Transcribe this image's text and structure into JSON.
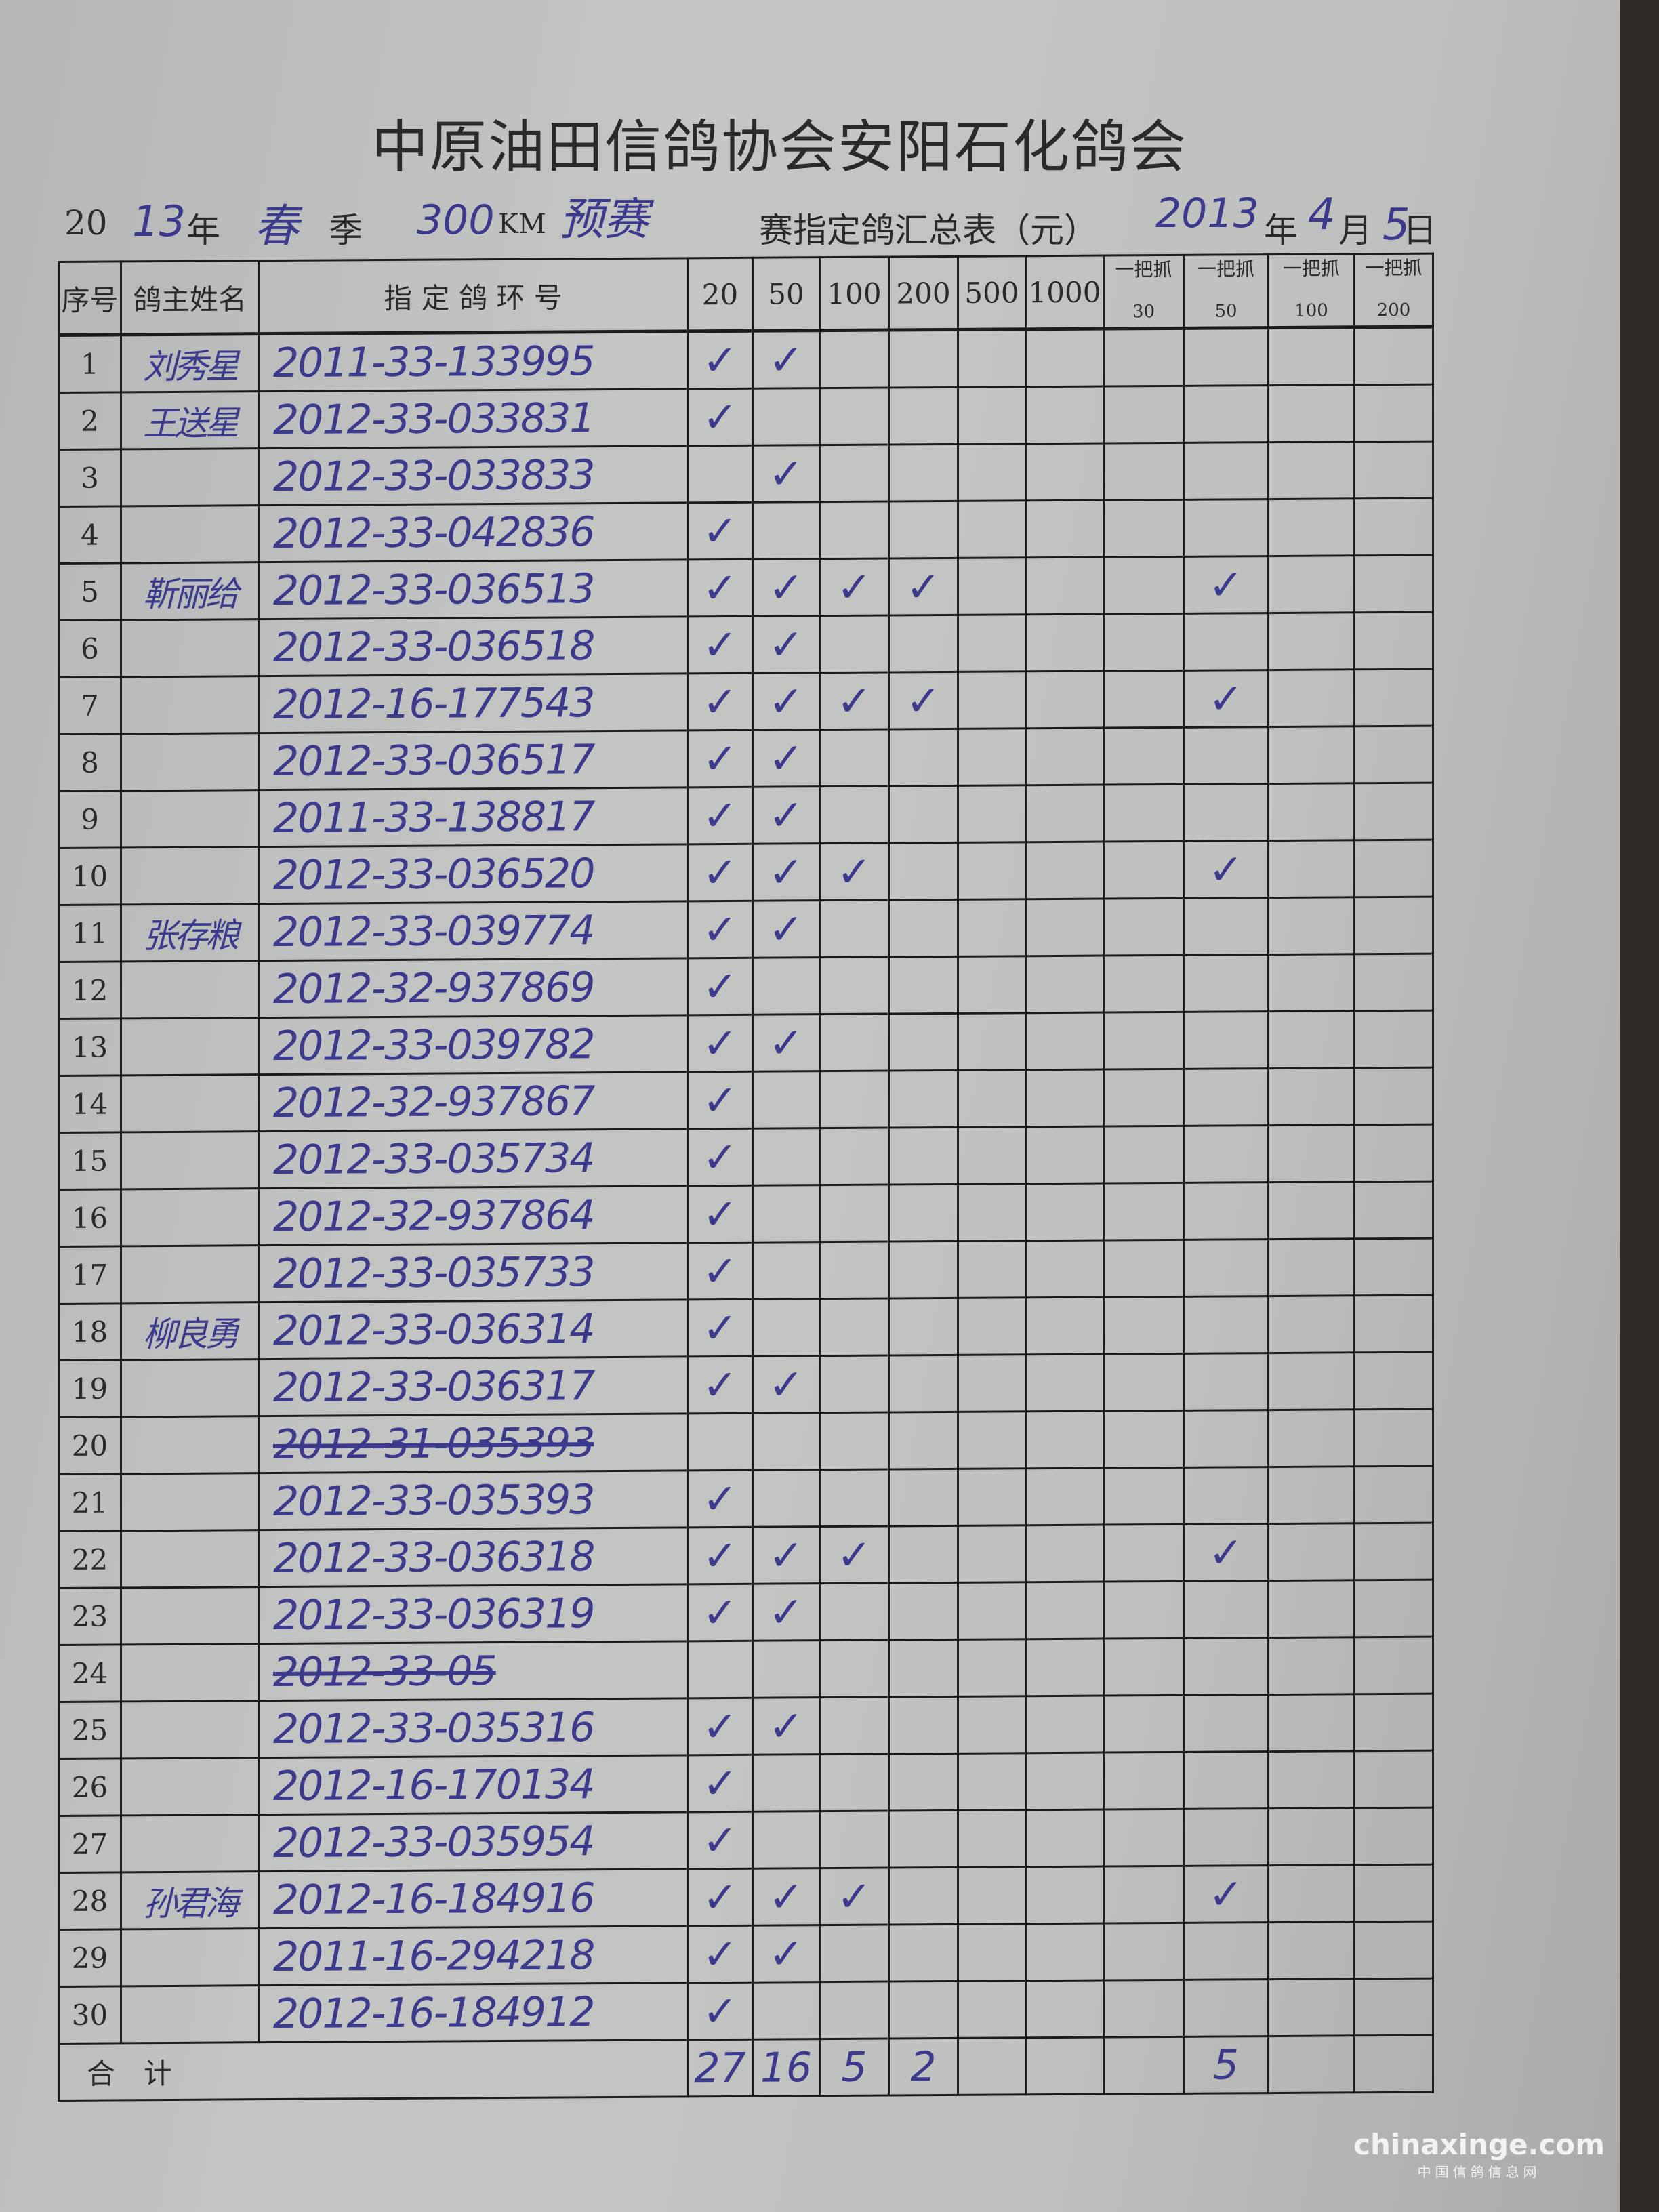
{
  "title": "中原油田信鸽协会安阳石化鸽会",
  "subtitle": {
    "prefix": "20",
    "year_hw": "13",
    "year_label": "年",
    "season_hw": "春",
    "season_label": "季",
    "distance_hw": "300",
    "distance_unit": "KM",
    "race_type_hw": "预赛",
    "form_name": "赛指定鸽汇总表（元）",
    "date_year_hw": "2013",
    "date_year_label": "年",
    "date_month_hw": "4",
    "date_month_label": "月",
    "date_day_hw": "5",
    "date_day_label": "日"
  },
  "table": {
    "headers": {
      "no": "序号",
      "owner": "鸽主姓名",
      "ring": "指 定 鸽 环 号",
      "stakes": [
        "20",
        "50",
        "100",
        "200",
        "500",
        "1000"
      ],
      "grab_label": "一把抓",
      "grab_stakes": [
        "30",
        "50",
        "100",
        "200"
      ]
    },
    "check_mark": "✓",
    "rows": [
      {
        "no": "1",
        "owner": "刘秀星",
        "ring": "2011-33-133995",
        "marks": [
          1,
          1,
          0,
          0,
          0,
          0,
          0,
          0,
          0,
          0
        ]
      },
      {
        "no": "2",
        "owner": "王送星",
        "ring": "2012-33-033831",
        "marks": [
          1,
          0,
          0,
          0,
          0,
          0,
          0,
          0,
          0,
          0
        ]
      },
      {
        "no": "3",
        "owner": "",
        "ring": "2012-33-033833",
        "marks": [
          0,
          1,
          0,
          0,
          0,
          0,
          0,
          0,
          0,
          0
        ]
      },
      {
        "no": "4",
        "owner": "",
        "ring": "2012-33-042836",
        "marks": [
          1,
          0,
          0,
          0,
          0,
          0,
          0,
          0,
          0,
          0
        ]
      },
      {
        "no": "5",
        "owner": "靳丽给",
        "ring": "2012-33-036513",
        "marks": [
          1,
          1,
          1,
          1,
          0,
          0,
          0,
          1,
          0,
          0
        ]
      },
      {
        "no": "6",
        "owner": "",
        "ring": "2012-33-036518",
        "marks": [
          1,
          1,
          0,
          0,
          0,
          0,
          0,
          0,
          0,
          0
        ]
      },
      {
        "no": "7",
        "owner": "",
        "ring": "2012-16-177543",
        "marks": [
          1,
          1,
          1,
          1,
          0,
          0,
          0,
          1,
          0,
          0
        ]
      },
      {
        "no": "8",
        "owner": "",
        "ring": "2012-33-036517",
        "marks": [
          1,
          1,
          0,
          0,
          0,
          0,
          0,
          0,
          0,
          0
        ]
      },
      {
        "no": "9",
        "owner": "",
        "ring": "2011-33-138817",
        "marks": [
          1,
          1,
          0,
          0,
          0,
          0,
          0,
          0,
          0,
          0
        ]
      },
      {
        "no": "10",
        "owner": "",
        "ring": "2012-33-036520",
        "marks": [
          1,
          1,
          1,
          0,
          0,
          0,
          0,
          1,
          0,
          0
        ]
      },
      {
        "no": "11",
        "owner": "张存粮",
        "ring": "2012-33-039774",
        "marks": [
          1,
          1,
          0,
          0,
          0,
          0,
          0,
          0,
          0,
          0
        ]
      },
      {
        "no": "12",
        "owner": "",
        "ring": "2012-32-937869",
        "marks": [
          1,
          0,
          0,
          0,
          0,
          0,
          0,
          0,
          0,
          0
        ]
      },
      {
        "no": "13",
        "owner": "",
        "ring": "2012-33-039782",
        "marks": [
          1,
          1,
          0,
          0,
          0,
          0,
          0,
          0,
          0,
          0
        ]
      },
      {
        "no": "14",
        "owner": "",
        "ring": "2012-32-937867",
        "marks": [
          1,
          0,
          0,
          0,
          0,
          0,
          0,
          0,
          0,
          0
        ]
      },
      {
        "no": "15",
        "owner": "",
        "ring": "2012-33-035734",
        "marks": [
          1,
          0,
          0,
          0,
          0,
          0,
          0,
          0,
          0,
          0
        ]
      },
      {
        "no": "16",
        "owner": "",
        "ring": "2012-32-937864",
        "marks": [
          1,
          0,
          0,
          0,
          0,
          0,
          0,
          0,
          0,
          0
        ]
      },
      {
        "no": "17",
        "owner": "",
        "ring": "2012-33-035733",
        "marks": [
          1,
          0,
          0,
          0,
          0,
          0,
          0,
          0,
          0,
          0
        ]
      },
      {
        "no": "18",
        "owner": "柳良勇",
        "ring": "2012-33-036314",
        "marks": [
          1,
          0,
          0,
          0,
          0,
          0,
          0,
          0,
          0,
          0
        ]
      },
      {
        "no": "19",
        "owner": "",
        "ring": "2012-33-036317",
        "marks": [
          1,
          1,
          0,
          0,
          0,
          0,
          0,
          0,
          0,
          0
        ]
      },
      {
        "no": "20",
        "owner": "",
        "ring": "2012-31-035393",
        "struck": true,
        "marks": [
          0,
          0,
          0,
          0,
          0,
          0,
          0,
          0,
          0,
          0
        ]
      },
      {
        "no": "21",
        "owner": "",
        "ring": "2012-33-035393",
        "marks": [
          1,
          0,
          0,
          0,
          0,
          0,
          0,
          0,
          0,
          0
        ]
      },
      {
        "no": "22",
        "owner": "",
        "ring": "2012-33-036318",
        "marks": [
          1,
          1,
          1,
          0,
          0,
          0,
          0,
          1,
          0,
          0
        ]
      },
      {
        "no": "23",
        "owner": "",
        "ring": "2012-33-036319",
        "marks": [
          1,
          1,
          0,
          0,
          0,
          0,
          0,
          0,
          0,
          0
        ]
      },
      {
        "no": "24",
        "owner": "",
        "ring": "2012-33-05",
        "struck": true,
        "marks": [
          0,
          0,
          0,
          0,
          0,
          0,
          0,
          0,
          0,
          0
        ]
      },
      {
        "no": "25",
        "owner": "",
        "ring": "2012-33-035316",
        "marks": [
          1,
          1,
          0,
          0,
          0,
          0,
          0,
          0,
          0,
          0
        ]
      },
      {
        "no": "26",
        "owner": "",
        "ring": "2012-16-170134",
        "marks": [
          1,
          0,
          0,
          0,
          0,
          0,
          0,
          0,
          0,
          0
        ]
      },
      {
        "no": "27",
        "owner": "",
        "ring": "2012-33-035954",
        "marks": [
          1,
          0,
          0,
          0,
          0,
          0,
          0,
          0,
          0,
          0
        ]
      },
      {
        "no": "28",
        "owner": "孙君海",
        "ring": "2012-16-184916",
        "marks": [
          1,
          1,
          1,
          0,
          0,
          0,
          0,
          1,
          0,
          0
        ]
      },
      {
        "no": "29",
        "owner": "",
        "ring": "2011-16-294218",
        "marks": [
          1,
          1,
          0,
          0,
          0,
          0,
          0,
          0,
          0,
          0
        ]
      },
      {
        "no": "30",
        "owner": "",
        "ring": "2012-16-184912",
        "marks": [
          1,
          0,
          0,
          0,
          0,
          0,
          0,
          0,
          0,
          0
        ]
      }
    ],
    "total_label": "合　计",
    "totals": [
      "27",
      "16",
      "5",
      "2",
      "",
      "",
      "",
      "5",
      "",
      ""
    ]
  },
  "colors": {
    "ink": "#3b3a8c",
    "print": "#2a2a2a",
    "paper": "#bfc1bf"
  },
  "watermark": {
    "domain": "chinaxinge.com",
    "subtitle": "中国信鸽信息网"
  }
}
